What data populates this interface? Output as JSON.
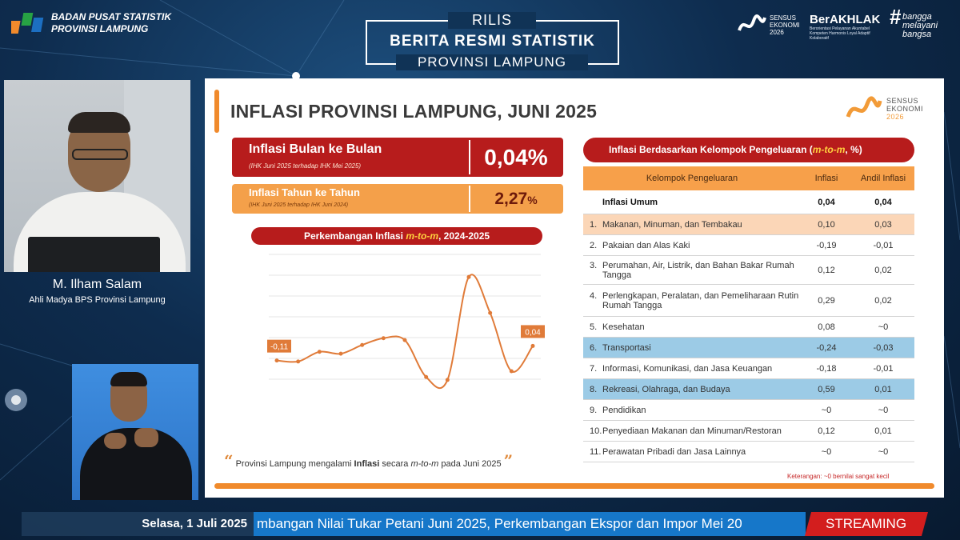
{
  "header": {
    "org_line1": "BADAN PUSAT STATISTIK",
    "org_line2": "PROVINSI LAMPUNG",
    "release_top": "RILIS",
    "release_main": "BERITA RESMI STATISTIK",
    "release_sub": "PROVINSI LAMPUNG",
    "se_logo_line1": "SENSUS",
    "se_logo_line2": "EKONOMI",
    "se_logo_year": "2026",
    "berakhlak": "BerAKHLAK",
    "berakhlak_small": "Berorientasi Pelayanan Akuntabel Kompeten Harmonis Loyal Adaptif Kolaboratif",
    "bangga_line1": "bangga",
    "bangga_line2": "melayani",
    "bangga_line3": "bangsa"
  },
  "presenter": {
    "name": "M. Ilham Salam",
    "title": "Ahli Madya BPS Provinsi Lampung"
  },
  "slide": {
    "title": "INFLASI PROVINSI LAMPUNG, JUNI 2025",
    "se_line1": "SENSUS",
    "se_line2": "EKONOMI",
    "se_year": "2026",
    "mtm_label": "Inflasi Bulan ke Bulan",
    "mtm_note": "(IHK Juni 2025 terhadap IHK Mei 2025)",
    "mtm_value": "0,04%",
    "yoy_label": "Inflasi Tahun ke Tahun",
    "yoy_note": "(IHK Juni 2025 terhadap IHK Juni 2024)",
    "yoy_value": "2,27",
    "yoy_unit": "%",
    "chart_title_pre": "Perkembangan Inflasi ",
    "chart_title_em": "m-to-m",
    "chart_title_post": ", 2024-2025",
    "quote_pre": "Provinsi Lampung mengalami ",
    "quote_bold": "Inflasi",
    "quote_mid": " secara ",
    "quote_em": "m-to-m",
    "quote_post": " pada Juni 2025",
    "quote_open": "“",
    "quote_close": "”",
    "table_title_pre": "Inflasi Berdasarkan Kelompok Pengeluaran (",
    "table_title_em": "m-to-m",
    "table_title_post": ", %)",
    "table_note": "Keterangan: ~0 bernilai sangat kecil"
  },
  "table": {
    "headers": [
      "Kelompok Pengeluaran",
      "Inflasi",
      "Andil Inflasi"
    ],
    "rows": [
      {
        "num": "",
        "label": "Inflasi Umum",
        "inflasi": "0,04",
        "andil": "0,04"
      },
      {
        "num": "1.",
        "label": "Makanan, Minuman, dan Tembakau",
        "inflasi": "0,10",
        "andil": "0,03"
      },
      {
        "num": "2.",
        "label": "Pakaian dan Alas Kaki",
        "inflasi": "-0,19",
        "andil": "-0,01"
      },
      {
        "num": "3.",
        "label": "Perumahan, Air, Listrik, dan Bahan Bakar Rumah Tangga",
        "inflasi": "0,12",
        "andil": "0,02"
      },
      {
        "num": "4.",
        "label": "Perlengkapan, Peralatan, dan Pemeliharaan Rutin Rumah Tangga",
        "inflasi": "0,29",
        "andil": "0,02"
      },
      {
        "num": "5.",
        "label": "Kesehatan",
        "inflasi": "0,08",
        "andil": "~0"
      },
      {
        "num": "6.",
        "label": "Transportasi",
        "inflasi": "-0,24",
        "andil": "-0,03"
      },
      {
        "num": "7.",
        "label": "Informasi, Komunikasi, dan Jasa Keuangan",
        "inflasi": "-0,18",
        "andil": "-0,01"
      },
      {
        "num": "8.",
        "label": "Rekreasi, Olahraga, dan Budaya",
        "inflasi": "0,59",
        "andil": "0,01"
      },
      {
        "num": "9.",
        "label": "Pendidikan",
        "inflasi": "~0",
        "andil": "~0"
      },
      {
        "num": "10.",
        "label": "Penyediaan Makanan dan Minuman/Restoran",
        "inflasi": "0,12",
        "andil": "0,01"
      },
      {
        "num": "11.",
        "label": "Perawatan Pribadi dan Jasa Lainnya",
        "inflasi": "~0",
        "andil": "~0"
      }
    ]
  },
  "chart_data": {
    "type": "line",
    "title": "Perkembangan Inflasi m-to-m, 2024-2025",
    "series": [
      {
        "values": [
          -0.11,
          -0.12,
          -0.02,
          -0.04,
          0.05,
          0.12,
          0.1,
          -0.28,
          -0.31,
          0.75,
          0.38,
          -0.22,
          0.04
        ]
      }
    ],
    "data_labels": [
      "-0,11",
      "0,04"
    ],
    "colors": {
      "line": "#e07b39",
      "label_bg": "#e07b39"
    }
  },
  "ticker": {
    "date": "Selasa, 1 Juli 2025",
    "scroll": "mbangan Nilai Tukar Petani Juni 2025, Perkembangan Ekspor dan Impor Mei 20",
    "streaming": "STREAMING"
  },
  "colors": {
    "accent_red": "#b71c1c",
    "accent_orange": "#f08a2c",
    "highlight_blue": "#9ccbe6"
  }
}
